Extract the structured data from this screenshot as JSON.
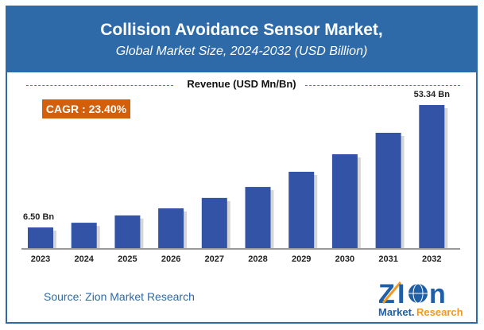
{
  "header": {
    "title": "Collision Avoidance Sensor Market,",
    "subtitle": "Global Market Size, 2024-2032 (USD Billion)"
  },
  "cagr": "CAGR : 23.40%",
  "source": "Source: Zion Market Research",
  "logo": {
    "text": "Zion Market.Research"
  },
  "colors": {
    "bar": "#3353a6",
    "header": "#2e6aa8",
    "cagr": "#d35f0a"
  },
  "chart_data": {
    "type": "bar",
    "title": "Revenue (USD Mn/Bn)",
    "categories": [
      "2023",
      "2024",
      "2025",
      "2026",
      "2027",
      "2028",
      "2029",
      "2030",
      "2031",
      "2032"
    ],
    "values": [
      6.5,
      8.3,
      11.1,
      13.8,
      17.8,
      22.0,
      27.8,
      34.5,
      42.7,
      53.34
    ],
    "data_labels": {
      "2023": "6.50 Bn",
      "2032": "53.34 Bn"
    },
    "grid": false
  }
}
